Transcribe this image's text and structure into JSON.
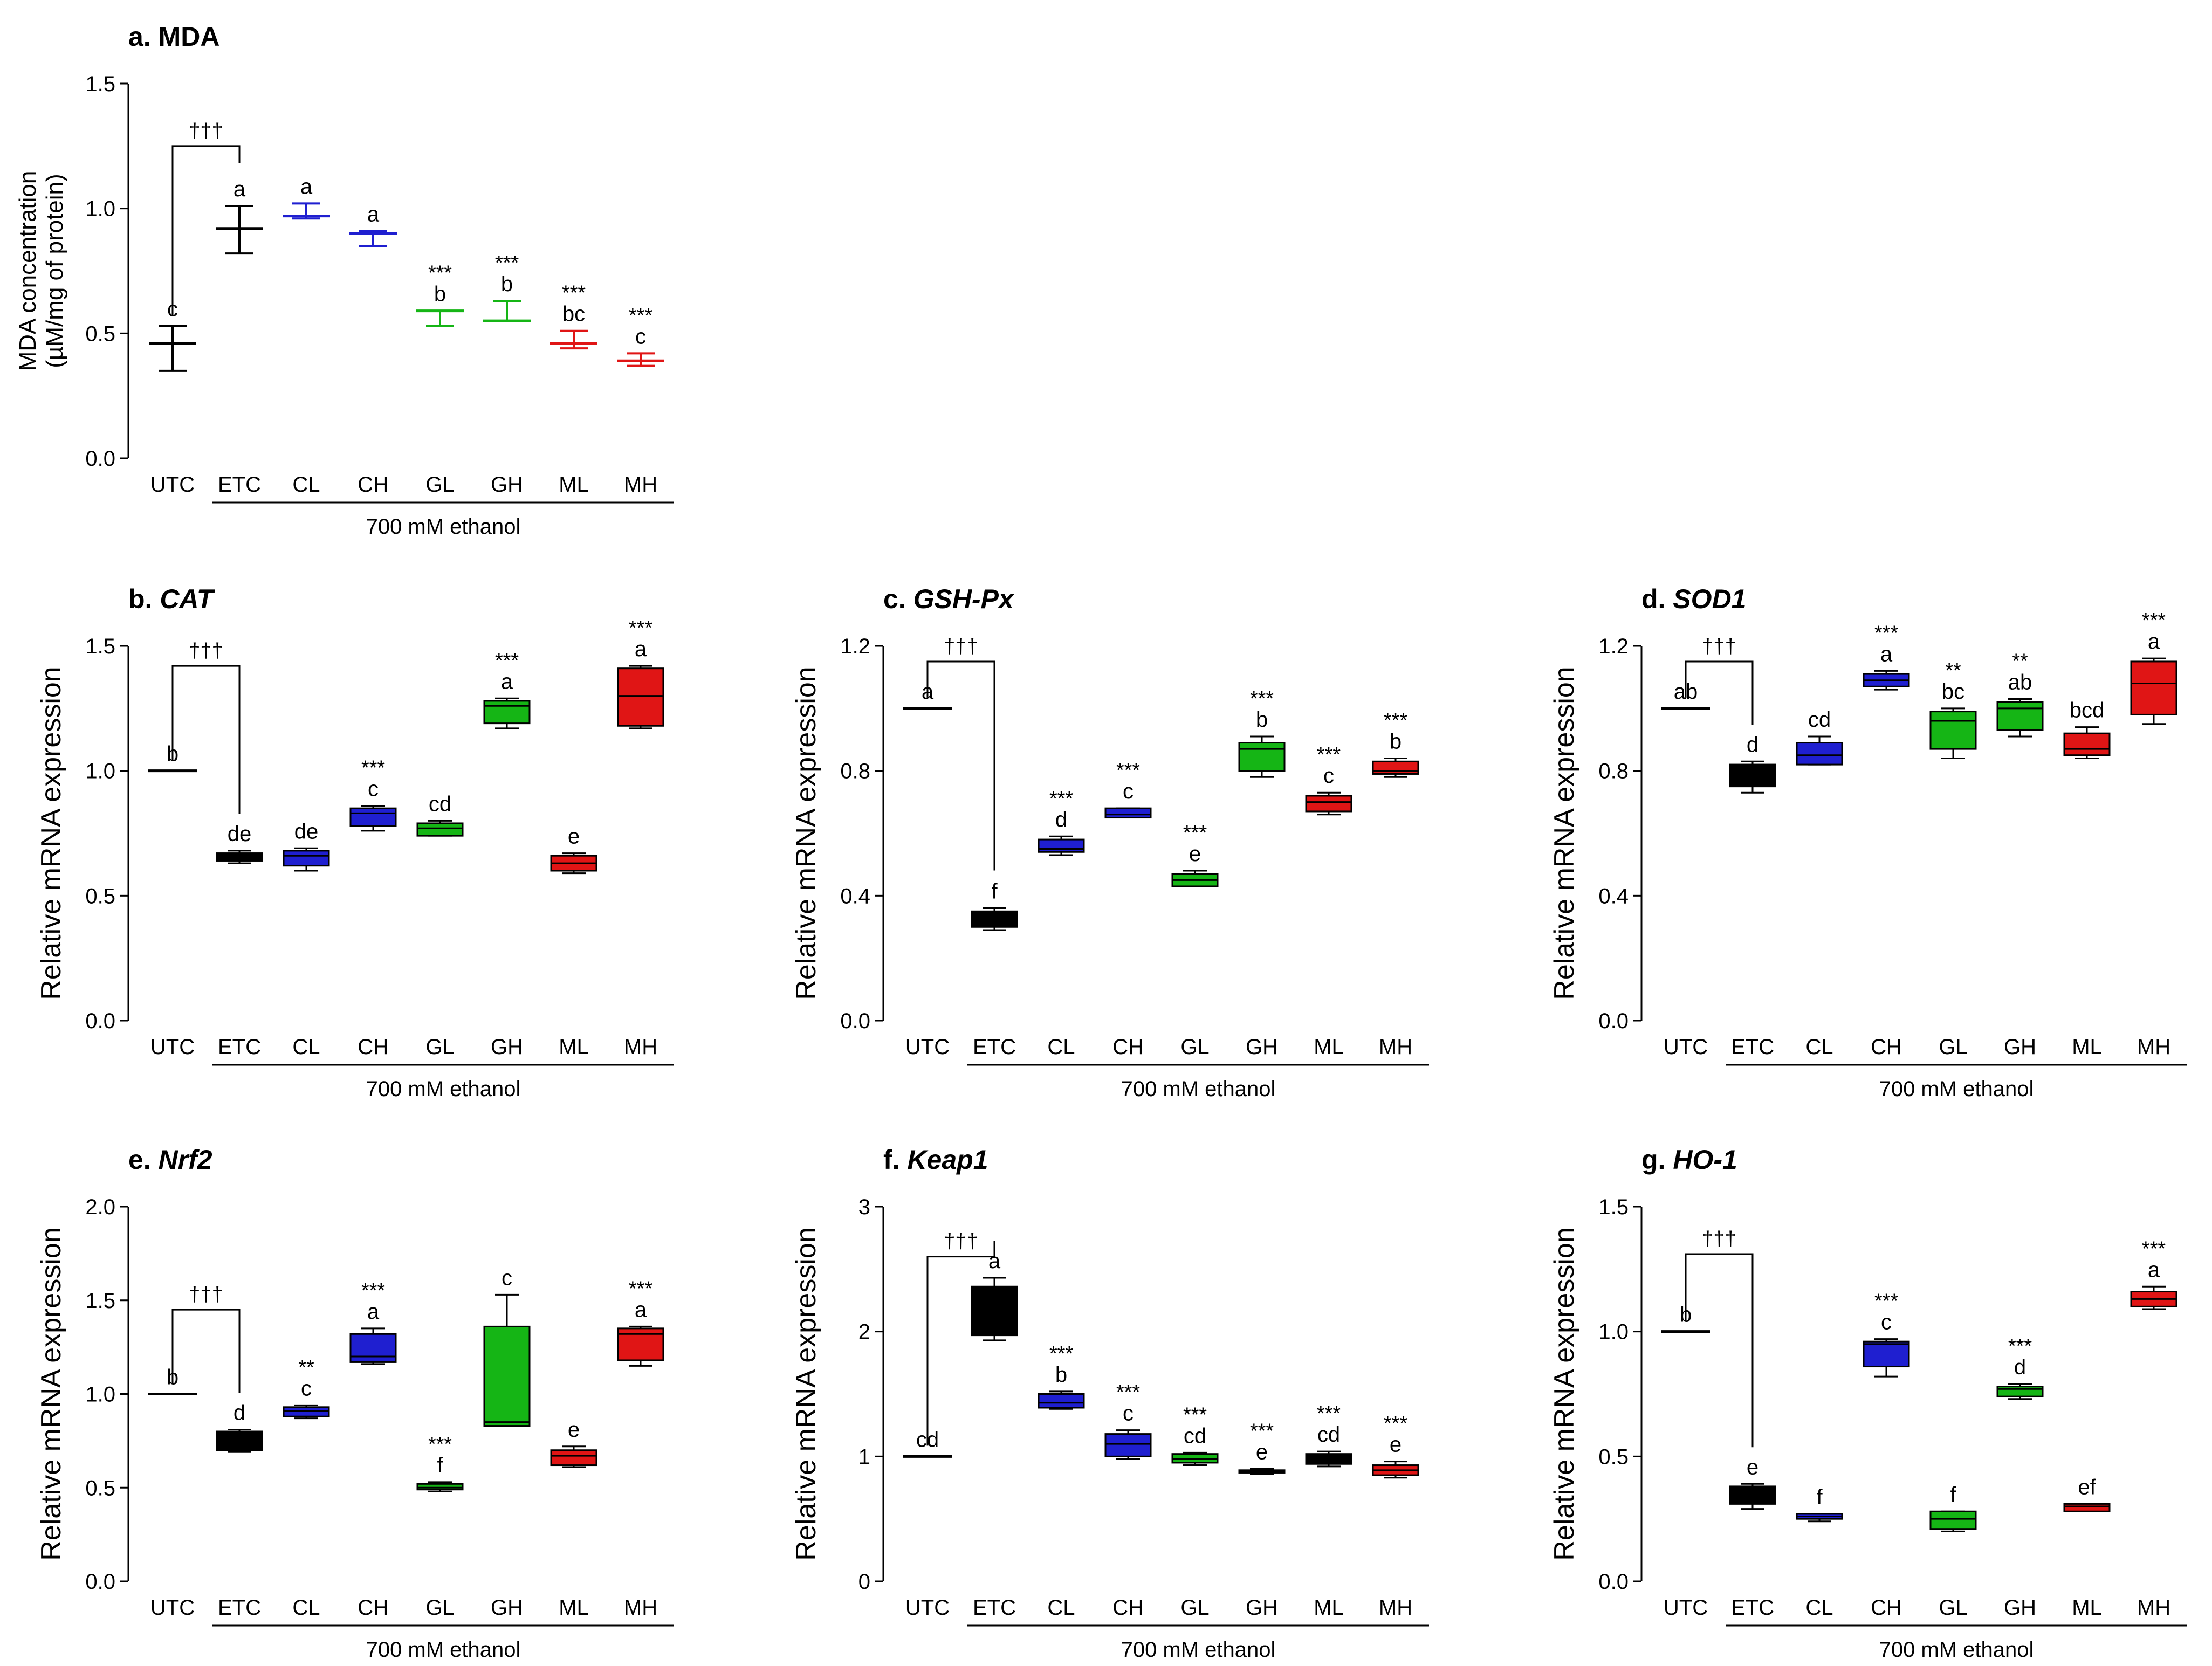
{
  "figure_group_label": "700 mM ethanol",
  "chart_data": [
    {
      "id": "a",
      "type": "box",
      "style": "errorbar",
      "title_prefix": "a. ",
      "title": "MDA",
      "title_italic": false,
      "ylabel": "MDA concentration",
      "ylabel2": "(µM/mg of protein)",
      "ylim": [
        0,
        1.5
      ],
      "yticks": [
        "0.0",
        "0.5",
        "1.0",
        "1.5"
      ],
      "ytick_values": [
        0,
        0.5,
        1.0,
        1.5
      ],
      "categories": [
        "UTC",
        "ETC",
        "CL",
        "CH",
        "GL",
        "GH",
        "ML",
        "MH"
      ],
      "colors": [
        "#000000",
        "#000000",
        "#1f1fd0",
        "#1f1fd0",
        "#15b515",
        "#15b515",
        "#e01515",
        "#e01515"
      ],
      "values": [
        {
          "mean": 0.46,
          "hi": 0.53,
          "lo": 0.35
        },
        {
          "mean": 0.92,
          "hi": 1.01,
          "lo": 0.82
        },
        {
          "mean": 0.97,
          "hi": 1.02,
          "lo": 0.96
        },
        {
          "mean": 0.9,
          "hi": 0.91,
          "lo": 0.85
        },
        {
          "mean": 0.59,
          "hi": 0.59,
          "lo": 0.53
        },
        {
          "mean": 0.55,
          "hi": 0.63,
          "lo": 0.55
        },
        {
          "mean": 0.46,
          "hi": 0.51,
          "lo": 0.44
        },
        {
          "mean": 0.39,
          "hi": 0.42,
          "lo": 0.37
        }
      ],
      "letters": [
        "c",
        "a",
        "a",
        "a",
        "b",
        "b",
        "bc",
        "c"
      ],
      "stars": [
        "",
        "",
        "",
        "",
        "***",
        "***",
        "***",
        "***"
      ],
      "dagger": "†††",
      "dagger_y": 1.25,
      "group_label": "700 mM ethanol"
    },
    {
      "id": "b",
      "type": "box",
      "title_prefix": "b. ",
      "title": "CAT",
      "title_italic": true,
      "ylabel": "Relative mRNA expression",
      "ylabel2": "",
      "ylim": [
        0,
        1.5
      ],
      "yticks": [
        "0.0",
        "0.5",
        "1.0",
        "1.5"
      ],
      "ytick_values": [
        0,
        0.5,
        1.0,
        1.5
      ],
      "categories": [
        "UTC",
        "ETC",
        "CL",
        "CH",
        "GL",
        "GH",
        "ML",
        "MH"
      ],
      "colors": [
        "#000000",
        "#000000",
        "#1f1fd0",
        "#1f1fd0",
        "#15b515",
        "#15b515",
        "#e01515",
        "#e01515"
      ],
      "values": [
        {
          "min": 1.0,
          "q1": 1.0,
          "med": 1.0,
          "q3": 1.0,
          "max": 1.0
        },
        {
          "min": 0.63,
          "q1": 0.64,
          "med": 0.65,
          "q3": 0.67,
          "max": 0.68
        },
        {
          "min": 0.6,
          "q1": 0.62,
          "med": 0.66,
          "q3": 0.68,
          "max": 0.69
        },
        {
          "min": 0.76,
          "q1": 0.78,
          "med": 0.83,
          "q3": 0.85,
          "max": 0.86
        },
        {
          "min": 0.74,
          "q1": 0.74,
          "med": 0.77,
          "q3": 0.79,
          "max": 0.8
        },
        {
          "min": 1.17,
          "q1": 1.19,
          "med": 1.26,
          "q3": 1.28,
          "max": 1.29
        },
        {
          "min": 0.59,
          "q1": 0.6,
          "med": 0.63,
          "q3": 0.66,
          "max": 0.67
        },
        {
          "min": 1.17,
          "q1": 1.18,
          "med": 1.3,
          "q3": 1.41,
          "max": 1.42
        }
      ],
      "letters": [
        "b",
        "de",
        "de",
        "c",
        "cd",
        "a",
        "e",
        "a"
      ],
      "stars": [
        "",
        "",
        "",
        "***",
        "",
        "***",
        "",
        "***"
      ],
      "dagger": "†††",
      "dagger_y": 1.42,
      "group_label": "700 mM ethanol"
    },
    {
      "id": "c",
      "type": "box",
      "title_prefix": "c. ",
      "title": "GSH-Px",
      "title_italic": true,
      "ylabel": "Relative mRNA expression",
      "ylabel2": "",
      "ylim": [
        0,
        1.2
      ],
      "yticks": [
        "0.0",
        "0.4",
        "0.8",
        "1.2"
      ],
      "ytick_values": [
        0,
        0.4,
        0.8,
        1.2
      ],
      "categories": [
        "UTC",
        "ETC",
        "CL",
        "CH",
        "GL",
        "GH",
        "ML",
        "MH"
      ],
      "colors": [
        "#000000",
        "#000000",
        "#1f1fd0",
        "#1f1fd0",
        "#15b515",
        "#15b515",
        "#e01515",
        "#e01515"
      ],
      "values": [
        {
          "min": 1.0,
          "q1": 1.0,
          "med": 1.0,
          "q3": 1.0,
          "max": 1.0
        },
        {
          "min": 0.29,
          "q1": 0.3,
          "med": 0.33,
          "q3": 0.35,
          "max": 0.36
        },
        {
          "min": 0.53,
          "q1": 0.54,
          "med": 0.55,
          "q3": 0.58,
          "max": 0.59
        },
        {
          "min": 0.65,
          "q1": 0.65,
          "med": 0.66,
          "q3": 0.68,
          "max": 0.68
        },
        {
          "min": 0.43,
          "q1": 0.43,
          "med": 0.45,
          "q3": 0.47,
          "max": 0.48
        },
        {
          "min": 0.78,
          "q1": 0.8,
          "med": 0.87,
          "q3": 0.89,
          "max": 0.91
        },
        {
          "min": 0.66,
          "q1": 0.67,
          "med": 0.7,
          "q3": 0.72,
          "max": 0.73
        },
        {
          "min": 0.78,
          "q1": 0.79,
          "med": 0.8,
          "q3": 0.83,
          "max": 0.84
        }
      ],
      "letters": [
        "a",
        "f",
        "d",
        "c",
        "e",
        "b",
        "c",
        "b"
      ],
      "stars": [
        "",
        "",
        "***",
        "***",
        "***",
        "***",
        "***",
        "***"
      ],
      "dagger": "†††",
      "dagger_y": 1.15,
      "group_label": "700 mM ethanol"
    },
    {
      "id": "d",
      "type": "box",
      "title_prefix": "d. ",
      "title": "SOD1",
      "title_italic": true,
      "ylabel": "Relative mRNA expression",
      "ylabel2": "",
      "ylim": [
        0,
        1.2
      ],
      "yticks": [
        "0.0",
        "0.4",
        "0.8",
        "1.2"
      ],
      "ytick_values": [
        0,
        0.4,
        0.8,
        1.2
      ],
      "categories": [
        "UTC",
        "ETC",
        "CL",
        "CH",
        "GL",
        "GH",
        "ML",
        "MH"
      ],
      "colors": [
        "#000000",
        "#000000",
        "#1f1fd0",
        "#1f1fd0",
        "#15b515",
        "#15b515",
        "#e01515",
        "#e01515"
      ],
      "values": [
        {
          "min": 1.0,
          "q1": 1.0,
          "med": 1.0,
          "q3": 1.0,
          "max": 1.0
        },
        {
          "min": 0.73,
          "q1": 0.75,
          "med": 0.79,
          "q3": 0.82,
          "max": 0.83
        },
        {
          "min": 0.82,
          "q1": 0.82,
          "med": 0.85,
          "q3": 0.89,
          "max": 0.91
        },
        {
          "min": 1.06,
          "q1": 1.07,
          "med": 1.09,
          "q3": 1.11,
          "max": 1.12
        },
        {
          "min": 0.84,
          "q1": 0.87,
          "med": 0.96,
          "q3": 0.99,
          "max": 1.0
        },
        {
          "min": 0.91,
          "q1": 0.93,
          "med": 1.0,
          "q3": 1.02,
          "max": 1.03
        },
        {
          "min": 0.84,
          "q1": 0.85,
          "med": 0.87,
          "q3": 0.92,
          "max": 0.94
        },
        {
          "min": 0.95,
          "q1": 0.98,
          "med": 1.08,
          "q3": 1.15,
          "max": 1.16
        }
      ],
      "letters": [
        "ab",
        "d",
        "cd",
        "a",
        "bc",
        "ab",
        "bcd",
        "a"
      ],
      "stars": [
        "",
        "",
        "",
        "***",
        "**",
        "**",
        "",
        "***"
      ],
      "dagger": "†††",
      "dagger_y": 1.15,
      "group_label": "700 mM ethanol"
    },
    {
      "id": "e",
      "type": "box",
      "title_prefix": "e. ",
      "title": "Nrf2",
      "title_italic": true,
      "ylabel": "Relative mRNA expression",
      "ylabel2": "",
      "ylim": [
        0,
        2.0
      ],
      "yticks": [
        "0.0",
        "0.5",
        "1.0",
        "1.5",
        "2.0"
      ],
      "ytick_values": [
        0,
        0.5,
        1.0,
        1.5,
        2.0
      ],
      "categories": [
        "UTC",
        "ETC",
        "CL",
        "CH",
        "GL",
        "GH",
        "ML",
        "MH"
      ],
      "colors": [
        "#000000",
        "#000000",
        "#1f1fd0",
        "#1f1fd0",
        "#15b515",
        "#15b515",
        "#e01515",
        "#e01515"
      ],
      "values": [
        {
          "min": 1.0,
          "q1": 1.0,
          "med": 1.0,
          "q3": 1.0,
          "max": 1.0
        },
        {
          "min": 0.69,
          "q1": 0.7,
          "med": 0.75,
          "q3": 0.8,
          "max": 0.81
        },
        {
          "min": 0.87,
          "q1": 0.88,
          "med": 0.91,
          "q3": 0.93,
          "max": 0.94
        },
        {
          "min": 1.16,
          "q1": 1.17,
          "med": 1.2,
          "q3": 1.32,
          "max": 1.35
        },
        {
          "min": 0.48,
          "q1": 0.49,
          "med": 0.5,
          "q3": 0.52,
          "max": 0.53
        },
        {
          "min": 0.83,
          "q1": 0.83,
          "med": 0.85,
          "q3": 1.36,
          "max": 1.53
        },
        {
          "min": 0.61,
          "q1": 0.62,
          "med": 0.67,
          "q3": 0.7,
          "max": 0.72
        },
        {
          "min": 1.15,
          "q1": 1.18,
          "med": 1.32,
          "q3": 1.35,
          "max": 1.36
        }
      ],
      "letters": [
        "b",
        "d",
        "c",
        "a",
        "f",
        "c",
        "e",
        "a"
      ],
      "stars": [
        "",
        "",
        "**",
        "***",
        "***",
        "",
        "",
        "***"
      ],
      "dagger": "†††",
      "dagger_y": 1.45,
      "group_label": "700 mM ethanol"
    },
    {
      "id": "f",
      "type": "box",
      "title_prefix": "f. ",
      "title": "Keap1",
      "title_italic": true,
      "ylabel": "Relative mRNA expression",
      "ylabel2": "",
      "ylim": [
        0,
        3
      ],
      "yticks": [
        "0",
        "1",
        "2",
        "3"
      ],
      "ytick_values": [
        0,
        1,
        2,
        3
      ],
      "categories": [
        "UTC",
        "ETC",
        "CL",
        "CH",
        "GL",
        "GH",
        "ML",
        "MH"
      ],
      "colors": [
        "#000000",
        "#000000",
        "#1f1fd0",
        "#1f1fd0",
        "#15b515",
        "#15b515",
        "#000000",
        "#e01515"
      ],
      "values": [
        {
          "min": 1.0,
          "q1": 1.0,
          "med": 1.0,
          "q3": 1.0,
          "max": 1.0
        },
        {
          "min": 1.93,
          "q1": 1.97,
          "med": 2.1,
          "q3": 2.36,
          "max": 2.43
        },
        {
          "min": 1.38,
          "q1": 1.39,
          "med": 1.43,
          "q3": 1.5,
          "max": 1.52
        },
        {
          "min": 0.98,
          "q1": 1.0,
          "med": 1.1,
          "q3": 1.18,
          "max": 1.21
        },
        {
          "min": 0.93,
          "q1": 0.95,
          "med": 0.98,
          "q3": 1.02,
          "max": 1.03
        },
        {
          "min": 0.86,
          "q1": 0.87,
          "med": 0.88,
          "q3": 0.89,
          "max": 0.9
        },
        {
          "min": 0.92,
          "q1": 0.94,
          "med": 0.98,
          "q3": 1.02,
          "max": 1.04
        },
        {
          "min": 0.83,
          "q1": 0.85,
          "med": 0.89,
          "q3": 0.93,
          "max": 0.96
        }
      ],
      "letters": [
        "cd",
        "a",
        "b",
        "c",
        "cd",
        "e",
        "cd",
        "e"
      ],
      "stars": [
        "",
        "",
        "***",
        "***",
        "***",
        "***",
        "***",
        "***"
      ],
      "dagger": "†††",
      "dagger_y": 2.6,
      "group_label": "700 mM ethanol"
    },
    {
      "id": "g",
      "type": "box",
      "title_prefix": "g. ",
      "title": "HO-1",
      "title_italic": true,
      "ylabel": "Relative mRNA expression",
      "ylabel2": "",
      "ylim": [
        0,
        1.5
      ],
      "yticks": [
        "0.0",
        "0.5",
        "1.0",
        "1.5"
      ],
      "ytick_values": [
        0,
        0.5,
        1.0,
        1.5
      ],
      "categories": [
        "UTC",
        "ETC",
        "CL",
        "CH",
        "GL",
        "GH",
        "ML",
        "MH"
      ],
      "colors": [
        "#000000",
        "#000000",
        "#1f1fd0",
        "#1f1fd0",
        "#15b515",
        "#15b515",
        "#e01515",
        "#e01515"
      ],
      "values": [
        {
          "min": 1.0,
          "q1": 1.0,
          "med": 1.0,
          "q3": 1.0,
          "max": 1.0
        },
        {
          "min": 0.29,
          "q1": 0.31,
          "med": 0.33,
          "q3": 0.38,
          "max": 0.39
        },
        {
          "min": 0.24,
          "q1": 0.25,
          "med": 0.26,
          "q3": 0.27,
          "max": 0.27
        },
        {
          "min": 0.82,
          "q1": 0.86,
          "med": 0.95,
          "q3": 0.96,
          "max": 0.97
        },
        {
          "min": 0.2,
          "q1": 0.21,
          "med": 0.25,
          "q3": 0.28,
          "max": 0.28
        },
        {
          "min": 0.73,
          "q1": 0.74,
          "med": 0.77,
          "q3": 0.78,
          "max": 0.79
        },
        {
          "min": 0.28,
          "q1": 0.28,
          "med": 0.3,
          "q3": 0.31,
          "max": 0.31
        },
        {
          "min": 1.09,
          "q1": 1.1,
          "med": 1.13,
          "q3": 1.16,
          "max": 1.18
        }
      ],
      "letters": [
        "b",
        "e",
        "f",
        "c",
        "f",
        "d",
        "ef",
        "a"
      ],
      "stars": [
        "",
        "",
        "",
        "***",
        "",
        "***",
        "",
        "***"
      ],
      "dagger": "†††",
      "dagger_y": 1.31,
      "group_label": "700 mM ethanol"
    }
  ]
}
